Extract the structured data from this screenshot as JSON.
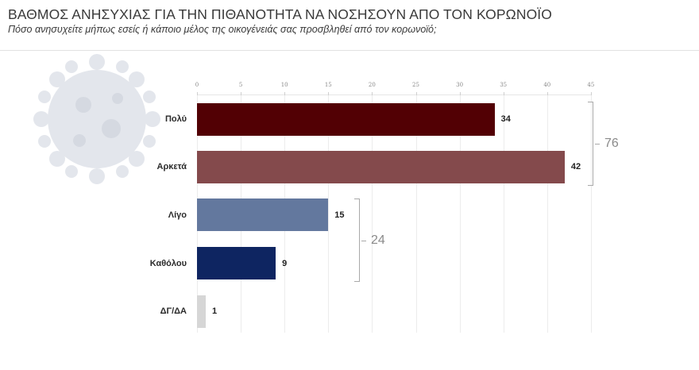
{
  "header": {
    "title": "ΒΑΘΜΟΣ ΑΝΗΣΥΧΙΑΣ ΓΙΑ ΤΗΝ ΠΙΘΑΝΟΤΗΤΑ ΝΑ ΝΟΣΗΣΟΥΝ ΑΠΟ ΤΟΝ ΚΟΡΩΝΟΪΟ",
    "subtitle": "Πόσο ανησυχείτε μήπως εσείς ή κάποιο μέλος της οικογένειάς σας προσβληθεί από τον κορωνοϊό;"
  },
  "decoration": {
    "background_icon": "coronavirus-icon"
  },
  "colors": {
    "polu": "#520004",
    "arketa": "#844a4c",
    "ligo": "#63789e",
    "katholou": "#0e2561",
    "dgda": "#d6d6d6",
    "bracket": "#a9a9a9",
    "bracket_text": "#8a8a8a"
  },
  "axis": {
    "ticks": [
      "0",
      "5",
      "10",
      "15",
      "20",
      "25",
      "30",
      "35",
      "40",
      "45"
    ]
  },
  "bars": [
    {
      "label": "Πολύ",
      "value": "34"
    },
    {
      "label": "Αρκετά",
      "value": "42"
    },
    {
      "label": "Λίγο",
      "value": "15"
    },
    {
      "label": "Καθόλου",
      "value": "9"
    },
    {
      "label": "ΔΓ/ΔΑ",
      "value": "1"
    }
  ],
  "groups": [
    {
      "members": [
        "Πολύ",
        "Αρκετά"
      ],
      "total": "76"
    },
    {
      "members": [
        "Λίγο",
        "Καθόλου"
      ],
      "total": "24"
    }
  ],
  "chart_data": {
    "type": "bar",
    "orientation": "horizontal",
    "title": "ΒΑΘΜΟΣ ΑΝΗΣΥΧΙΑΣ ΓΙΑ ΤΗΝ ΠΙΘΑΝΟΤΗΤΑ ΝΑ ΝΟΣΗΣΟΥΝ ΑΠΟ ΤΟΝ ΚΟΡΩΝΟΪΟ",
    "subtitle": "Πόσο ανησυχείτε μήπως εσείς ή κάποιο μέλος της οικογένειάς σας προσβληθεί από τον κορωνοϊό;",
    "categories": [
      "Πολύ",
      "Αρκετά",
      "Λίγο",
      "Καθόλου",
      "ΔΓ/ΔΑ"
    ],
    "values": [
      34,
      42,
      15,
      9,
      1
    ],
    "colors": [
      "#520004",
      "#844a4c",
      "#63789e",
      "#0e2561",
      "#d6d6d6"
    ],
    "xlabel": "",
    "ylabel": "",
    "xlim": [
      0,
      45
    ],
    "xticks": [
      0,
      5,
      10,
      15,
      20,
      25,
      30,
      35,
      40,
      45
    ],
    "x_axis_position": "top",
    "grid": true,
    "legend": "none",
    "annotations": [
      {
        "type": "bracket",
        "covers": [
          "Πολύ",
          "Αρκετά"
        ],
        "text": "76"
      },
      {
        "type": "bracket",
        "covers": [
          "Λίγο",
          "Καθόλου"
        ],
        "text": "24"
      }
    ]
  }
}
